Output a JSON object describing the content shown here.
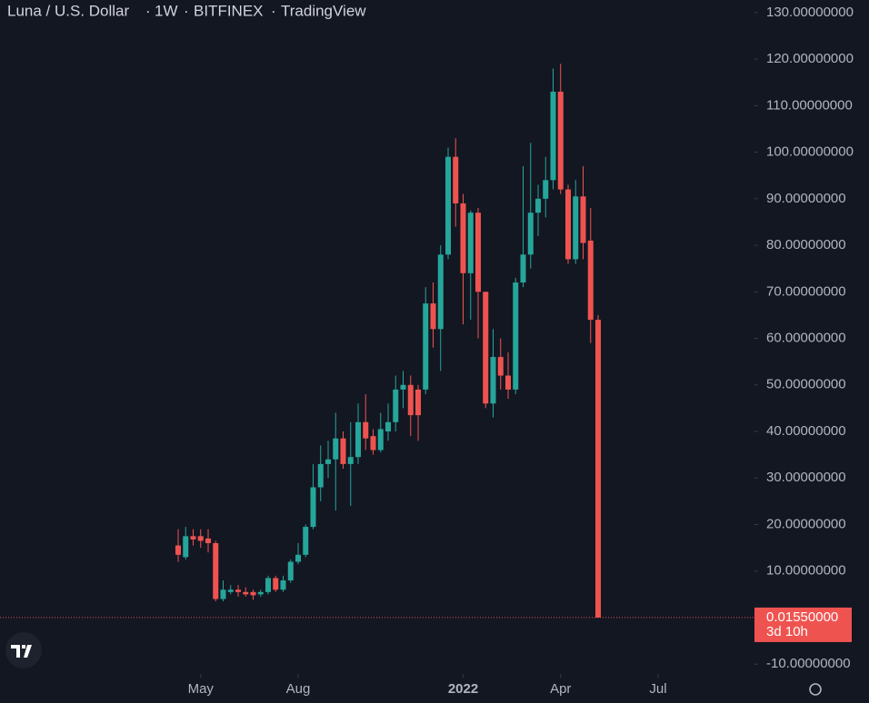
{
  "chart_data": {
    "type": "candlestick",
    "title": "Luna / U.S. Dollar",
    "interval": "1W",
    "exchange": "BITFINEX",
    "source": "TradingView",
    "categories": [
      null,
      null,
      null,
      null,
      null,
      null,
      null,
      null,
      null,
      null,
      null,
      null,
      null,
      null,
      null,
      null,
      null,
      null,
      null,
      null,
      null,
      null,
      null,
      null,
      null,
      null,
      null,
      null,
      null,
      null,
      null,
      null,
      null,
      null,
      null,
      null,
      null,
      null,
      null,
      null,
      null,
      null,
      null,
      null,
      null,
      null,
      null,
      null,
      null,
      null,
      null,
      null,
      null,
      null,
      null,
      null,
      null
    ],
    "open": [
      15.5,
      13,
      17.5,
      17.5,
      17,
      16,
      4,
      5.5,
      6,
      5.5,
      5.5,
      5,
      5.5,
      8.5,
      6,
      8,
      12,
      13.5,
      19.5,
      28,
      33,
      34,
      38.5,
      33,
      34.5,
      42,
      39,
      36,
      40,
      42,
      49,
      50,
      49,
      49,
      67.5,
      62,
      78,
      99,
      89,
      74,
      87,
      70,
      46,
      56,
      52,
      49,
      72,
      78,
      87,
      90,
      94,
      113,
      92,
      77,
      90.5,
      81,
      64
    ],
    "high": [
      19,
      19.5,
      19,
      19,
      19,
      16.5,
      8,
      7,
      7,
      6.5,
      6,
      6,
      9,
      9,
      9,
      12.5,
      16,
      20,
      33,
      37,
      38,
      44,
      40,
      42,
      46,
      48,
      40.5,
      44,
      46,
      52,
      53,
      52,
      50,
      71,
      72,
      80,
      101,
      103,
      91,
      87.5,
      88,
      70,
      62,
      60,
      57,
      73,
      97,
      102,
      93,
      99,
      118,
      119,
      93,
      94,
      97,
      88,
      65
    ],
    "low": [
      12,
      12.5,
      15.5,
      15,
      14,
      3.5,
      3.5,
      5,
      4.5,
      4.5,
      3.8,
      4.5,
      5,
      5.5,
      5.5,
      7.5,
      11.5,
      13,
      19,
      25,
      30,
      23,
      32,
      24,
      33,
      36,
      35,
      35.5,
      38,
      40,
      45,
      39,
      38,
      48,
      58,
      53,
      77,
      84,
      63,
      64,
      60,
      45,
      43,
      49,
      47,
      48,
      71,
      75,
      82,
      86,
      92,
      91,
      76,
      76,
      77,
      59,
      0.0155
    ],
    "close": [
      13.5,
      17.5,
      16.8,
      16.5,
      16,
      4,
      6,
      6,
      5.5,
      5,
      4.8,
      5.5,
      8.5,
      6,
      8,
      12,
      13.5,
      19.5,
      28,
      33,
      34,
      38.5,
      33,
      34.5,
      42,
      38.5,
      36,
      40.5,
      42,
      49,
      50,
      43.5,
      43.5,
      67.5,
      62,
      78,
      99,
      89,
      74,
      87,
      70,
      46,
      56,
      52,
      49,
      72,
      78,
      87,
      90,
      94,
      113,
      92,
      77,
      90.5,
      80.5,
      64,
      0.0155
    ],
    "up_color": "#26a69a",
    "down_color": "#ef5350",
    "xticks": [
      {
        "value": 3,
        "label": "May"
      },
      {
        "value": 16,
        "label": "Aug"
      },
      {
        "value": 38,
        "label": "2022"
      },
      {
        "value": 51,
        "label": "Apr"
      },
      {
        "value": 64,
        "label": "Jul"
      }
    ],
    "ylim": [
      -12.1,
      132.7
    ],
    "yticks": [
      {
        "value": -10,
        "label": "-10.00000000"
      },
      {
        "value": 10,
        "label": "10.00000000"
      },
      {
        "value": 20,
        "label": "20.00000000"
      },
      {
        "value": 30,
        "label": "30.00000000"
      },
      {
        "value": 40,
        "label": "40.00000000"
      },
      {
        "value": 50,
        "label": "50.00000000"
      },
      {
        "value": 60,
        "label": "60.00000000"
      },
      {
        "value": 70,
        "label": "70.00000000"
      },
      {
        "value": 80,
        "label": "80.00000000"
      },
      {
        "value": 90,
        "label": "90.00000000"
      },
      {
        "value": 100,
        "label": "100.00000000"
      },
      {
        "value": 110,
        "label": "110.00000000"
      },
      {
        "value": 120,
        "label": "120.00000000"
      },
      {
        "value": 130,
        "label": "130.00000000"
      }
    ],
    "last_price_label": "0.01550000",
    "countdown": "3d 10h",
    "grid": false
  }
}
